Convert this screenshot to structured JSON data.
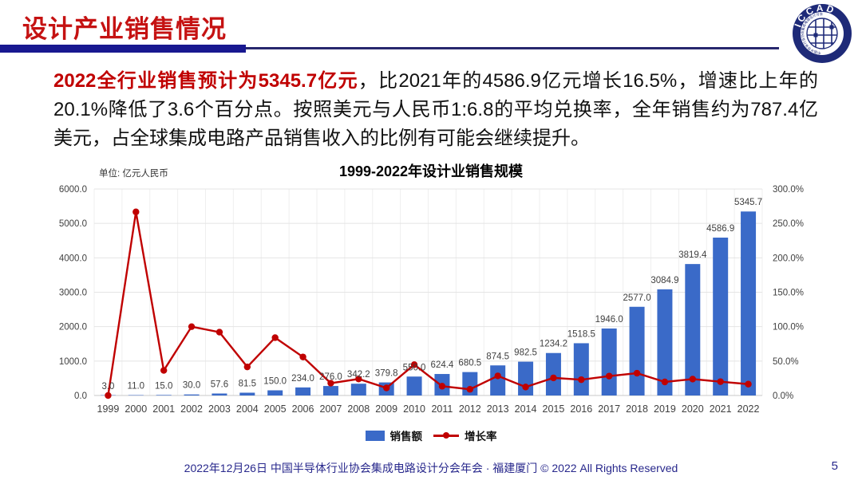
{
  "header": {
    "title": "设计产业销售情况"
  },
  "logo": {
    "text": "ICCAD",
    "ring_text": "中国半导体行业协会集成电路设计分会"
  },
  "intro": {
    "highlight": "2022全行业销售预计为5345.7亿元",
    "rest": "，比2021年的4586.9亿元增长16.5%，增速比上年的20.1%降低了3.6个百分点。按照美元与人民币1:6.8的平均兑换率，全年销售约为787.4亿美元，占全球集成电路产品销售收入的比例有可能会继续提升。"
  },
  "chart": {
    "unit_label": "单位: 亿元人民币",
    "title": "1999-2022年设计业销售规模"
  },
  "chart_data": {
    "type": "bar",
    "title": "1999-2022年设计业销售规模",
    "categories": [
      "1999",
      "2000",
      "2001",
      "2002",
      "2003",
      "2004",
      "2005",
      "2006",
      "2007",
      "2008",
      "2009",
      "2010",
      "2011",
      "2012",
      "2013",
      "2014",
      "2015",
      "2016",
      "2017",
      "2018",
      "2019",
      "2020",
      "2021",
      "2022"
    ],
    "series": [
      {
        "name": "销售额",
        "type": "bar",
        "axis": "left",
        "color": "#3a6ac8",
        "values": [
          3.0,
          11.0,
          15.0,
          30.0,
          57.6,
          81.5,
          150.0,
          234.0,
          276.0,
          342.2,
          379.8,
          550.0,
          624.4,
          680.5,
          874.5,
          982.5,
          1234.2,
          1518.5,
          1946.0,
          2577.0,
          3084.9,
          3819.4,
          4586.9,
          5345.7
        ],
        "labels": [
          "3.0",
          "11.0",
          "15.0",
          "30.0",
          "57.6",
          "81.5",
          "150.0",
          "234.0",
          "276.0",
          "342.2",
          "379.8",
          "550.0",
          "624.4",
          "680.5",
          "874.5",
          "982.5",
          "1234.2",
          "1518.5",
          "1946.0",
          "2577.0",
          "3084.9",
          "3819.4",
          "4586.9",
          "5345.7"
        ]
      },
      {
        "name": "增长率",
        "type": "line",
        "axis": "right",
        "color": "#c00000",
        "values": [
          0.0,
          266.7,
          36.4,
          100.0,
          92.0,
          41.5,
          84.0,
          56.0,
          17.9,
          24.0,
          11.0,
          44.8,
          13.5,
          9.0,
          28.5,
          12.3,
          25.6,
          23.0,
          28.2,
          32.4,
          19.7,
          23.8,
          20.1,
          16.5
        ]
      }
    ],
    "left_axis": {
      "min": 0,
      "max": 6000,
      "step": 1000,
      "tick_labels": [
        "0.0",
        "1000.0",
        "2000.0",
        "3000.0",
        "4000.0",
        "5000.0",
        "6000.0"
      ]
    },
    "right_axis": {
      "min": 0,
      "max": 300,
      "step": 50,
      "tick_labels": [
        "0.0%",
        "50.0%",
        "100.0%",
        "150.0%",
        "200.0%",
        "250.0%",
        "300.0%"
      ]
    },
    "grid": true,
    "legend_position": "bottom"
  },
  "legend": [
    {
      "label": "销售额",
      "color": "#3a6ac8",
      "marker": "bar"
    },
    {
      "label": "增长率",
      "color": "#c00000",
      "marker": "line-dot"
    }
  ],
  "footer": {
    "text": "2022年12月26日 中国半导体行业协会集成电路设计分会年会 · 福建厦门 © 2022 All Rights Reserved",
    "page": "5"
  },
  "colors": {
    "title_red": "#c51212",
    "highlight_red": "#c00000",
    "divider_navy": "#181890",
    "footer_navy": "#28288c",
    "bar_blue": "#3a6ac8",
    "line_red": "#c00000"
  }
}
